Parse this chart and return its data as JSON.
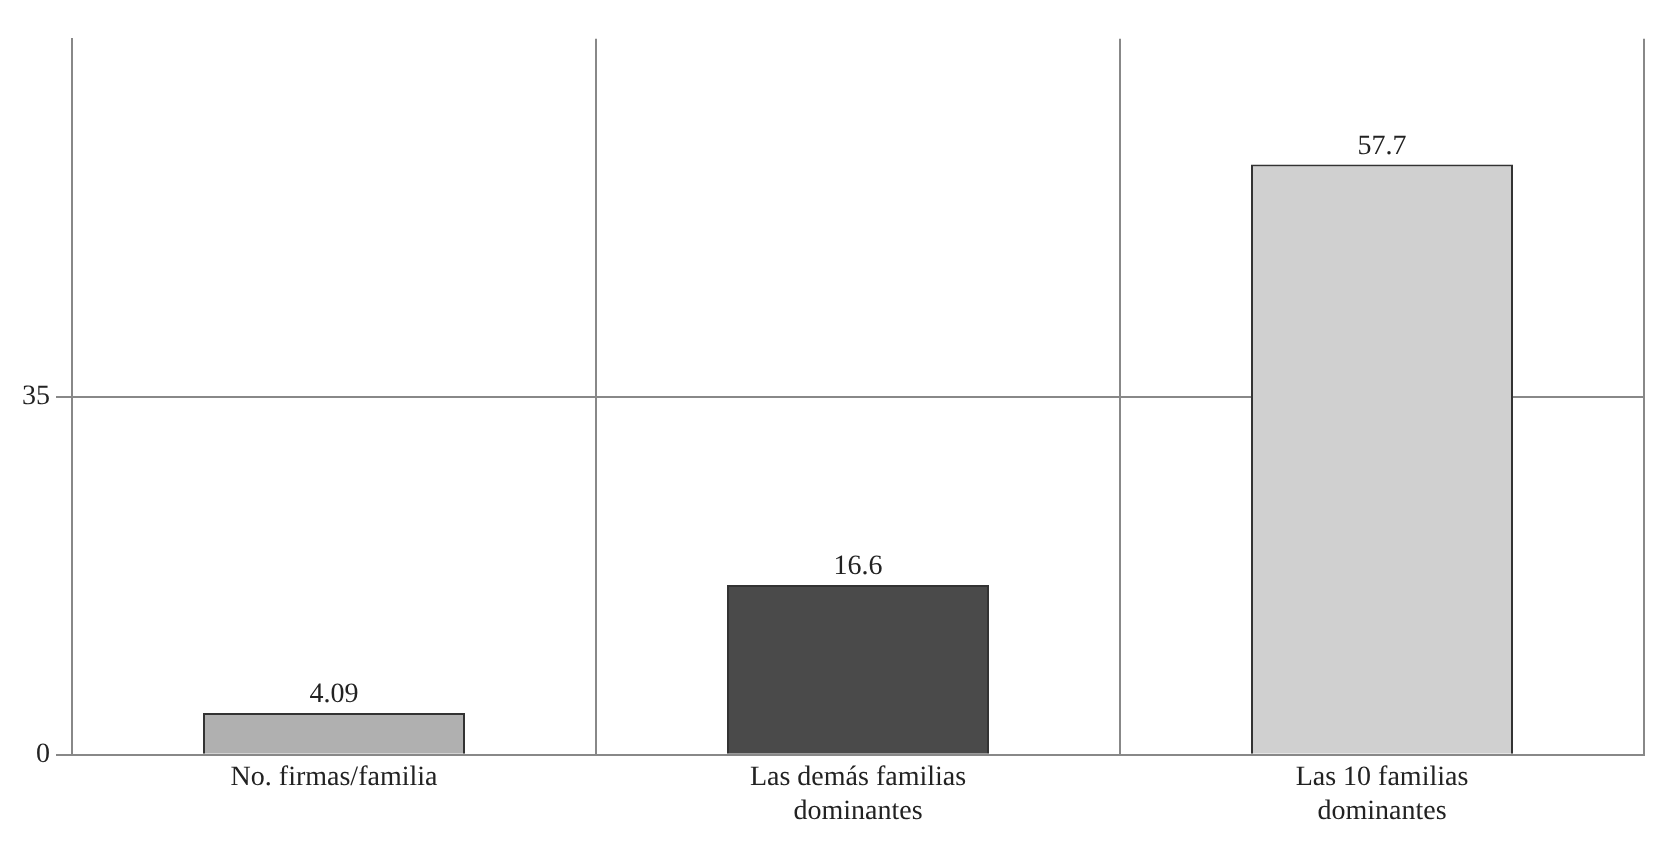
{
  "chart_data": {
    "type": "bar",
    "categories": [
      "No. firmas/familia",
      "Las demás familias dominantes",
      "Las 10 familias dominantes"
    ],
    "values": [
      4.09,
      16.6,
      57.7
    ],
    "colors": [
      "#b0b0b0",
      "#4a4a4a",
      "#d0d0d0"
    ],
    "ylim": [
      0,
      70
    ],
    "yticks": [
      0,
      35
    ],
    "grid": true,
    "data_labels": true
  }
}
